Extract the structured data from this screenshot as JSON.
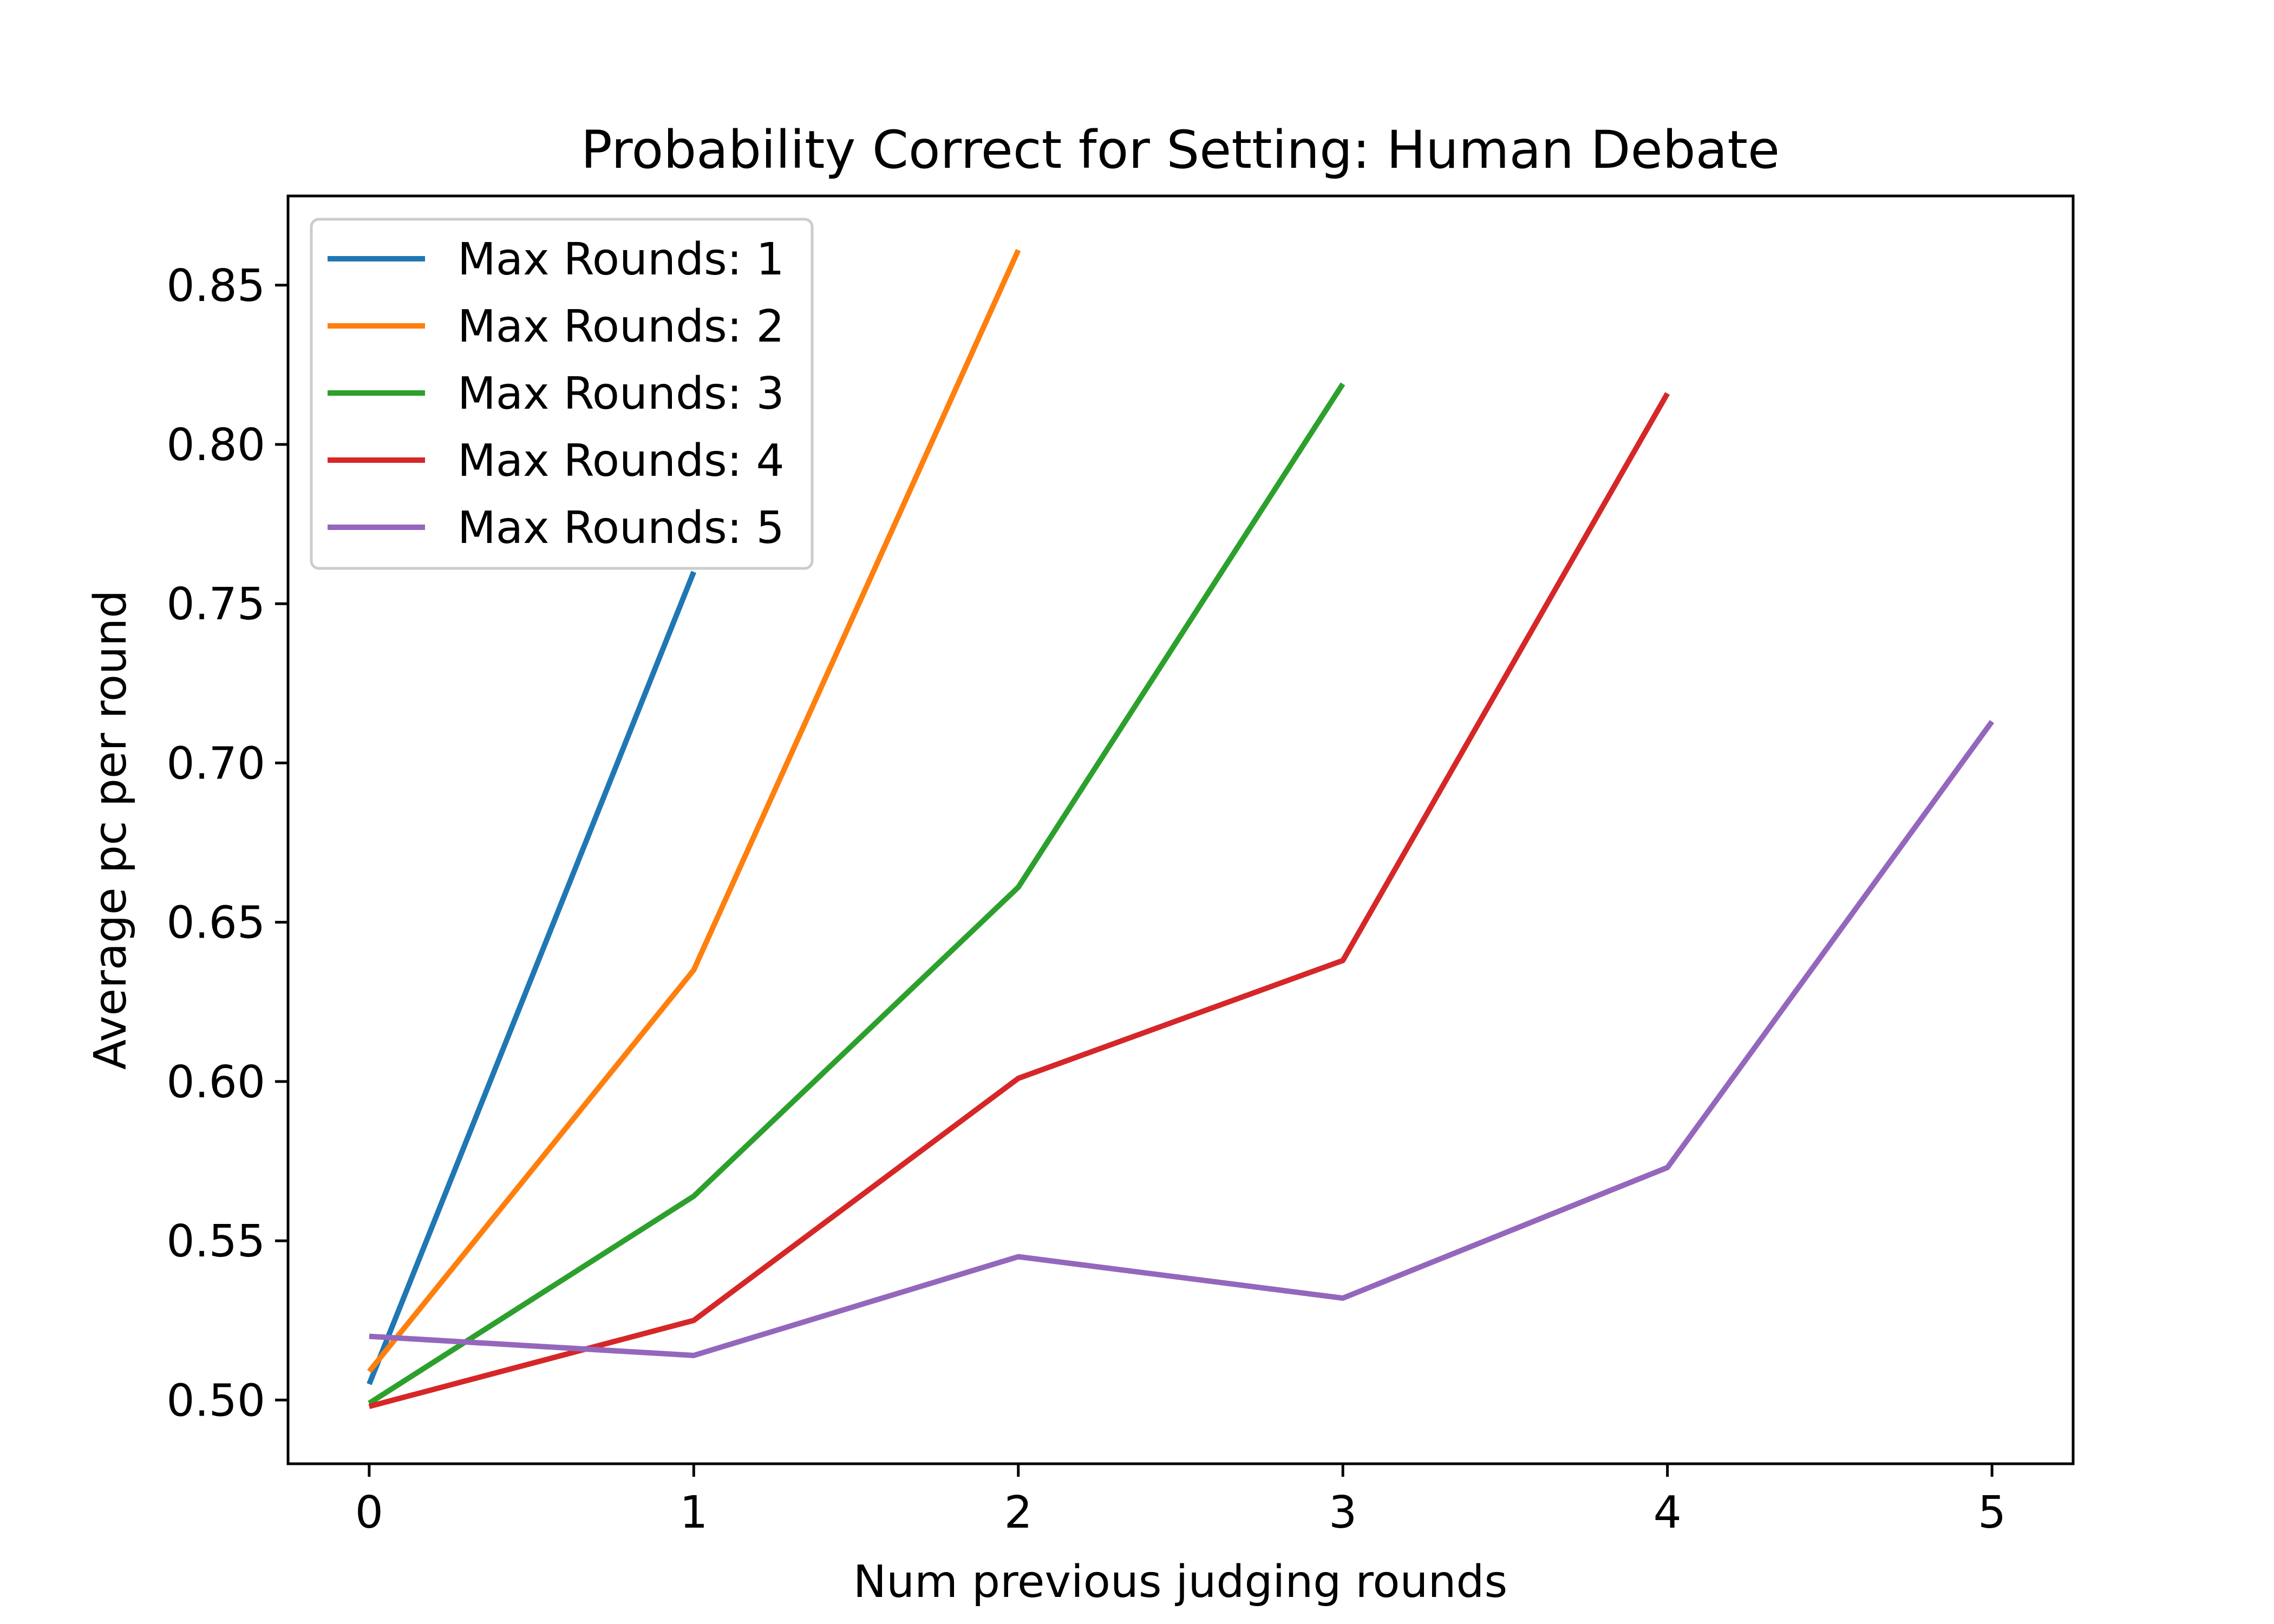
{
  "chart_data": {
    "type": "line",
    "title": "Probability Correct for Setting: Human Debate",
    "xlabel": "Num previous judging rounds",
    "ylabel": "Average pc per round",
    "xlim": [
      -0.25,
      5.25
    ],
    "ylim": [
      0.48,
      0.878
    ],
    "xticks": [
      0,
      1,
      2,
      3,
      4,
      5
    ],
    "xtick_labels": [
      "0",
      "1",
      "2",
      "3",
      "4",
      "5"
    ],
    "yticks": [
      0.5,
      0.55,
      0.6,
      0.65,
      0.7,
      0.75,
      0.8,
      0.85
    ],
    "ytick_labels": [
      "0.50",
      "0.55",
      "0.60",
      "0.65",
      "0.70",
      "0.75",
      "0.80",
      "0.85"
    ],
    "grid": false,
    "legend_position": "top-left",
    "series": [
      {
        "name": "Max Rounds: 1",
        "color": "#1f77b4",
        "x": [
          0,
          1
        ],
        "y": [
          0.505,
          0.76
        ]
      },
      {
        "name": "Max Rounds: 2",
        "color": "#ff7f0e",
        "x": [
          0,
          1,
          2
        ],
        "y": [
          0.509,
          0.635,
          0.861
        ]
      },
      {
        "name": "Max Rounds: 3",
        "color": "#2ca02c",
        "x": [
          0,
          1,
          2,
          3
        ],
        "y": [
          0.499,
          0.564,
          0.661,
          0.819
        ]
      },
      {
        "name": "Max Rounds: 4",
        "color": "#d62728",
        "x": [
          0,
          1,
          2,
          3,
          4
        ],
        "y": [
          0.498,
          0.525,
          0.601,
          0.638,
          0.816
        ]
      },
      {
        "name": "Max Rounds: 5",
        "color": "#9467bd",
        "x": [
          0,
          1,
          2,
          3,
          4,
          5
        ],
        "y": [
          0.52,
          0.514,
          0.545,
          0.532,
          0.573,
          0.713
        ]
      }
    ]
  }
}
